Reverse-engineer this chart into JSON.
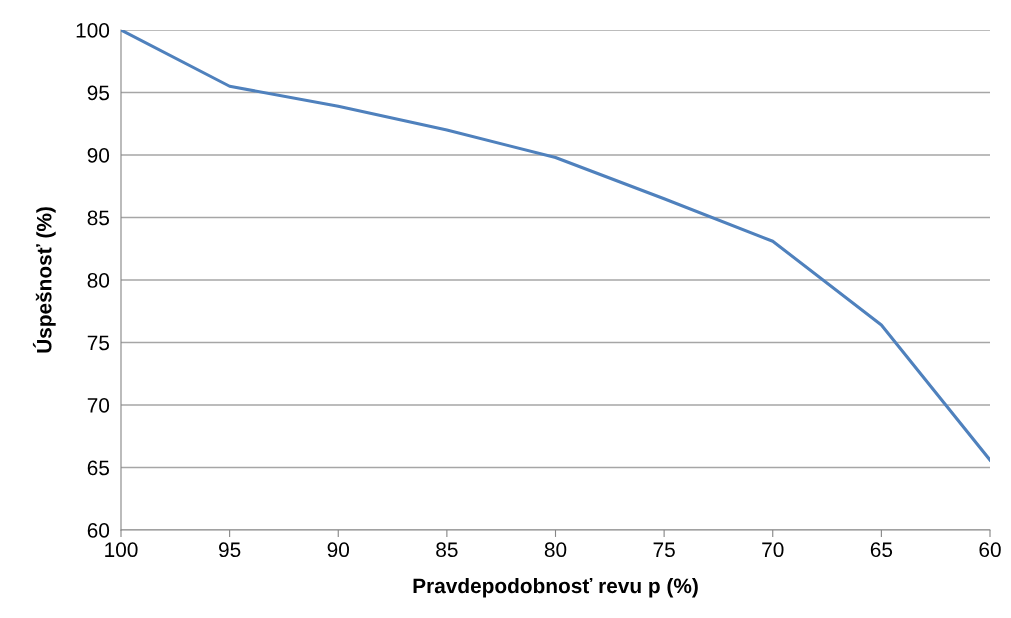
{
  "chart_data": {
    "type": "line",
    "xlabel": "Pravdepodobnosť revu p (%)",
    "ylabel": "Úspešnosť (%)",
    "x": [
      100,
      95,
      90,
      85,
      80,
      75,
      70,
      65,
      60
    ],
    "series": [
      {
        "color": "#4f81bd",
        "values": [
          100,
          95.5,
          93.9,
          92,
          89.8,
          86.5,
          83.1,
          76.4,
          65.6
        ]
      }
    ],
    "xlim": [
      100,
      60
    ],
    "xticks": [
      100,
      95,
      90,
      85,
      80,
      75,
      70,
      65,
      60
    ],
    "ylim": [
      60,
      100
    ],
    "yticks": [
      60,
      65,
      70,
      75,
      80,
      85,
      90,
      95,
      100
    ],
    "grid": "y",
    "marker": "none",
    "line_style": "solid"
  }
}
